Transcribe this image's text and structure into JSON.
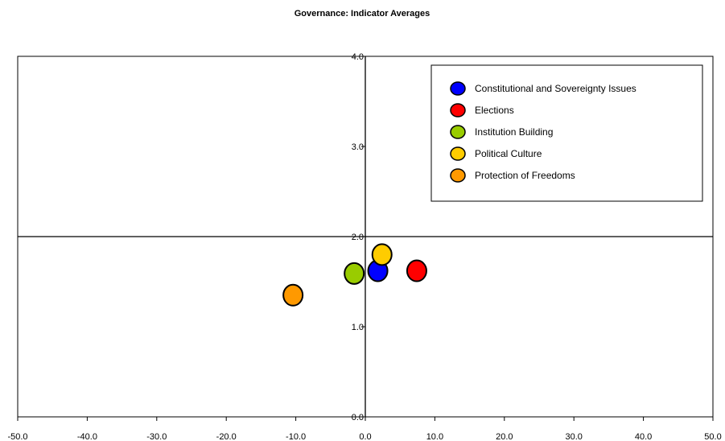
{
  "chart_data": {
    "type": "scatter",
    "title": "Governance: Indicator Averages",
    "xlabel": "",
    "ylabel": "",
    "xlim": [
      -50,
      50
    ],
    "ylim": [
      0,
      4
    ],
    "x_ticks": [
      "-50.0",
      "-40.0",
      "-30.0",
      "-20.0",
      "-10.0",
      "0.0",
      "10.0",
      "20.0",
      "30.0",
      "40.0",
      "50.0"
    ],
    "y_ticks": [
      "0.0",
      "1.0",
      "2.0",
      "3.0",
      "4.0"
    ],
    "x_tick_values": [
      -50,
      -40,
      -30,
      -20,
      -10,
      0,
      10,
      20,
      30,
      40,
      50
    ],
    "y_tick_values": [
      0,
      1,
      2,
      3,
      4
    ],
    "reference_lines": {
      "horizontal_y": 2.0,
      "vertical_x": 0
    },
    "grid": false,
    "legend_position": "top-right",
    "series": [
      {
        "name": "Constitutional and Sovereignty Issues",
        "color": "#0000ff",
        "x": 1.8,
        "y": 1.62
      },
      {
        "name": "Elections",
        "color": "#ff0000",
        "x": 7.4,
        "y": 1.62
      },
      {
        "name": "Institution Building",
        "color": "#99cc00",
        "x": -1.6,
        "y": 1.59
      },
      {
        "name": "Political Culture",
        "color": "#ffcc00",
        "x": 2.4,
        "y": 1.8
      },
      {
        "name": "Protection of Freedoms",
        "color": "#ff9900",
        "x": -10.4,
        "y": 1.35
      }
    ]
  }
}
